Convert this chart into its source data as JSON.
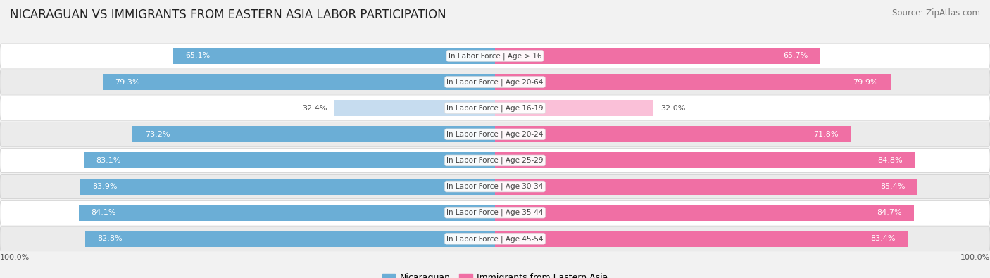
{
  "title": "NICARAGUAN VS IMMIGRANTS FROM EASTERN ASIA LABOR PARTICIPATION",
  "source": "Source: ZipAtlas.com",
  "categories": [
    "In Labor Force | Age > 16",
    "In Labor Force | Age 20-64",
    "In Labor Force | Age 16-19",
    "In Labor Force | Age 20-24",
    "In Labor Force | Age 25-29",
    "In Labor Force | Age 30-34",
    "In Labor Force | Age 35-44",
    "In Labor Force | Age 45-54"
  ],
  "nicaraguan_values": [
    65.1,
    79.3,
    32.4,
    73.2,
    83.1,
    83.9,
    84.1,
    82.8
  ],
  "eastern_asia_values": [
    65.7,
    79.9,
    32.0,
    71.8,
    84.8,
    85.4,
    84.7,
    83.4
  ],
  "nicaraguan_color": "#6BAED6",
  "eastern_asia_color": "#F06FA4",
  "nicaraguan_color_light": "#C6DCEF",
  "eastern_asia_color_light": "#FAC0D8",
  "bar_height": 0.62,
  "background_color": "#f2f2f2",
  "row_bg_even": "#ffffff",
  "row_bg_odd": "#ebebeb",
  "max_value": 100.0,
  "legend_nicaraguan": "Nicaraguan",
  "legend_eastern_asia": "Immigrants from Eastern Asia",
  "x_left_label": "100.0%",
  "x_right_label": "100.0%",
  "title_fontsize": 12,
  "source_fontsize": 8.5,
  "value_fontsize": 8,
  "category_fontsize": 7.5,
  "legend_fontsize": 9
}
